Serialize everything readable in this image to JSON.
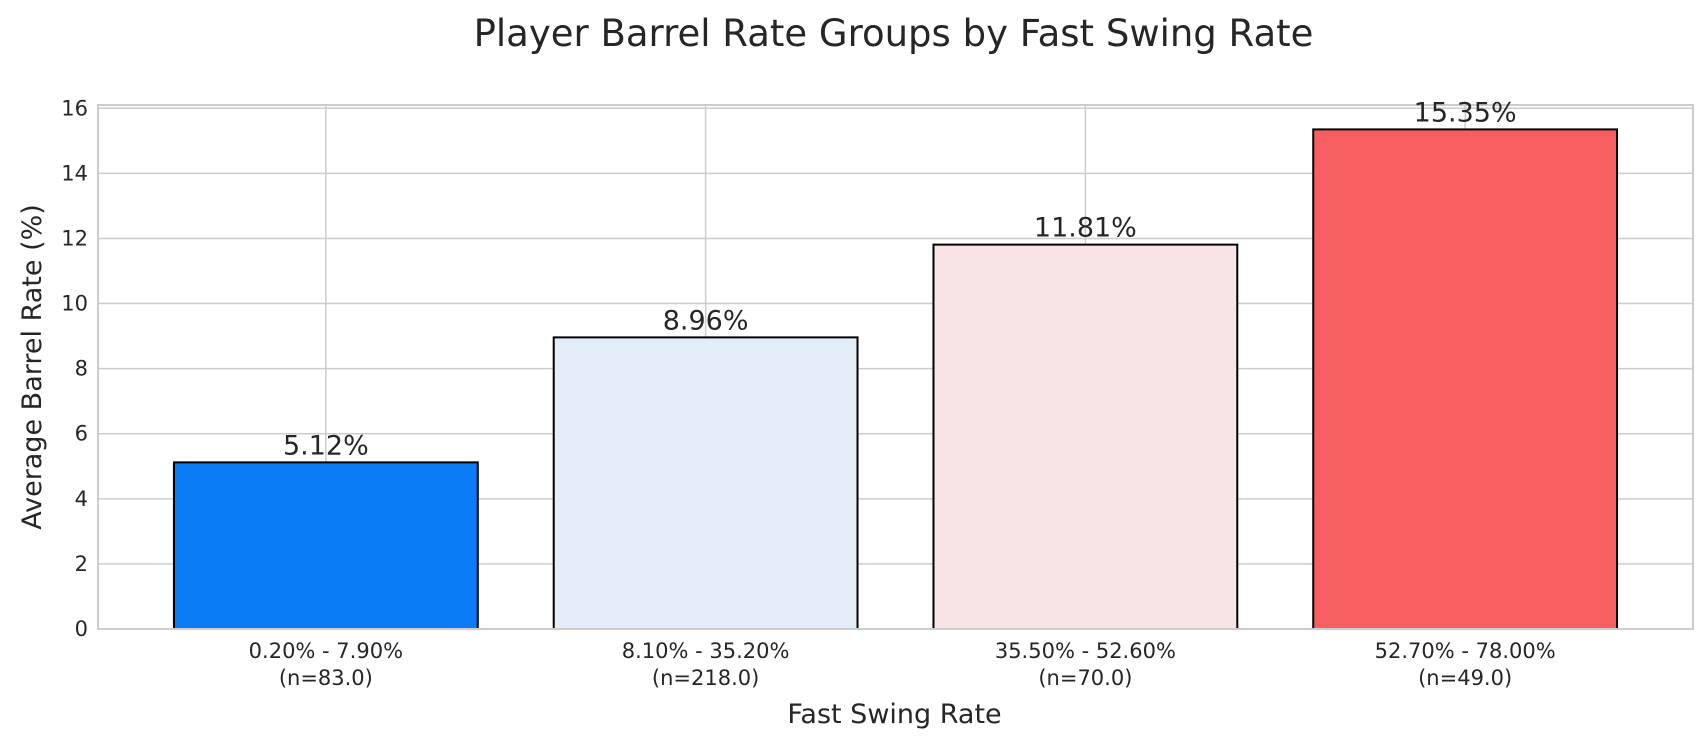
{
  "chart_data": {
    "type": "bar",
    "title": "Player Barrel Rate Groups by Fast Swing Rate",
    "xlabel": "Fast Swing Rate",
    "ylabel": "Average Barrel Rate (%)",
    "categories": [
      "0.20% - 7.90%",
      "8.10% - 35.20%",
      "35.50% - 52.60%",
      "52.70% - 78.00%"
    ],
    "counts": [
      "(n=83.0)",
      "(n=218.0)",
      "(n=70.0)",
      "(n=49.0)"
    ],
    "values": [
      5.12,
      8.96,
      11.81,
      15.35
    ],
    "value_labels": [
      "5.12%",
      "8.96%",
      "11.81%",
      "15.35%"
    ],
    "bar_colors": [
      "#0a7cf5",
      "#e3edf8",
      "#f9e4e5",
      "#f75e5f"
    ],
    "ylim": [
      0,
      16.1
    ],
    "yticks": [
      0,
      2,
      4,
      6,
      8,
      10,
      12,
      14,
      16
    ],
    "grid": true
  }
}
